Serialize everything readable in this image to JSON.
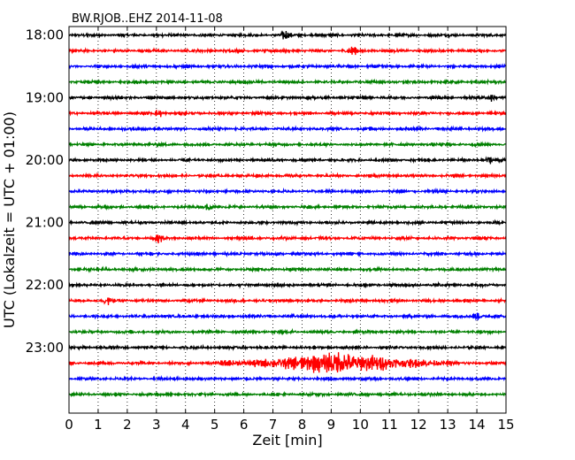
{
  "chart_data": {
    "type": "line",
    "title": "BW.RJOB..EHZ 2014-11-08",
    "xlabel": "Zeit  [min]",
    "ylabel": "UTC (Lokalzeit = UTC + 01:00)",
    "xlim": [
      0,
      15
    ],
    "x_ticks": [
      0,
      1,
      2,
      3,
      4,
      5,
      6,
      7,
      8,
      9,
      10,
      11,
      12,
      13,
      14,
      15
    ],
    "y_tick_labels": [
      "18:00",
      "19:00",
      "20:00",
      "21:00",
      "22:00",
      "23:00"
    ],
    "grid": "vertical dotted",
    "trace_interval_minutes": 15,
    "trace_colors": [
      "#000000",
      "#ff0000",
      "#0000ff",
      "#008000"
    ],
    "traces": [
      {
        "start": "18:00",
        "color": "#000000",
        "events": [
          {
            "minute": 7.4,
            "amp": 0.35
          }
        ]
      },
      {
        "start": "18:15",
        "color": "#ff0000",
        "events": [
          {
            "minute": 9.7,
            "amp": 0.4
          }
        ]
      },
      {
        "start": "18:30",
        "color": "#0000ff",
        "events": []
      },
      {
        "start": "18:45",
        "color": "#008000",
        "events": []
      },
      {
        "start": "19:00",
        "color": "#000000",
        "events": [
          {
            "minute": 14.5,
            "amp": 0.3
          }
        ]
      },
      {
        "start": "19:15",
        "color": "#ff0000",
        "events": [
          {
            "minute": 3.1,
            "amp": 0.3
          }
        ]
      },
      {
        "start": "19:30",
        "color": "#0000ff",
        "events": []
      },
      {
        "start": "19:45",
        "color": "#008000",
        "events": []
      },
      {
        "start": "20:00",
        "color": "#000000",
        "events": [
          {
            "minute": 14.4,
            "amp": 0.3
          }
        ]
      },
      {
        "start": "20:15",
        "color": "#ff0000",
        "events": []
      },
      {
        "start": "20:30",
        "color": "#0000ff",
        "events": []
      },
      {
        "start": "20:45",
        "color": "#008000",
        "events": [
          {
            "minute": 4.8,
            "amp": 0.3
          }
        ]
      },
      {
        "start": "21:00",
        "color": "#000000",
        "events": []
      },
      {
        "start": "21:15",
        "color": "#ff0000",
        "events": [
          {
            "minute": 3.1,
            "amp": 0.35
          }
        ]
      },
      {
        "start": "21:30",
        "color": "#0000ff",
        "events": []
      },
      {
        "start": "21:45",
        "color": "#008000",
        "events": []
      },
      {
        "start": "22:00",
        "color": "#000000",
        "events": []
      },
      {
        "start": "22:15",
        "color": "#ff0000",
        "events": [
          {
            "minute": 1.3,
            "amp": 0.35
          }
        ]
      },
      {
        "start": "22:30",
        "color": "#0000ff",
        "events": [
          {
            "minute": 14.0,
            "amp": 0.3
          }
        ]
      },
      {
        "start": "22:45",
        "color": "#008000",
        "events": []
      },
      {
        "start": "23:00",
        "color": "#000000",
        "events": []
      },
      {
        "start": "23:15",
        "color": "#ff0000",
        "events": [
          {
            "minute": 9.2,
            "amp": 1.0
          }
        ]
      },
      {
        "start": "23:30",
        "color": "#0000ff",
        "events": []
      },
      {
        "start": "23:45",
        "color": "#008000",
        "events": []
      }
    ]
  }
}
